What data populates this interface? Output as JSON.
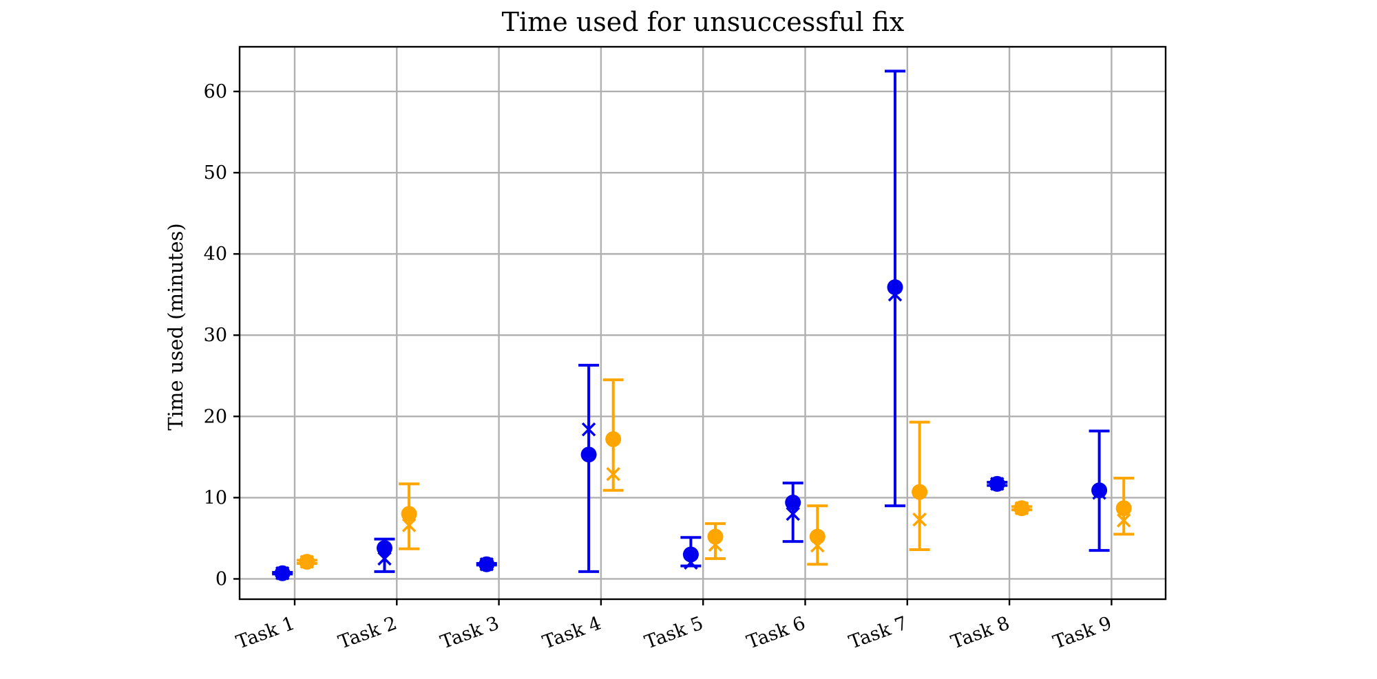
{
  "chart_data": {
    "type": "errorbar",
    "title": "Time used for unsuccessful fix",
    "xlabel": "",
    "ylabel": "Time used (minutes)",
    "ylim": [
      -2.5,
      65.5
    ],
    "yticks": [
      0,
      10,
      20,
      30,
      40,
      50,
      60
    ],
    "categories": [
      "Task 1",
      "Task 2",
      "Task 3",
      "Task 4",
      "Task 5",
      "Task 6",
      "Task 7",
      "Task 8",
      "Task 9"
    ],
    "grid": true,
    "series": [
      {
        "color": "#0000ee",
        "offset": -0.12,
        "mean": [
          0.7,
          3.8,
          1.8,
          15.3,
          3.0,
          9.4,
          35.9,
          11.7,
          10.9
        ],
        "median": [
          0.7,
          2.5,
          1.8,
          18.4,
          2.0,
          8.0,
          35.0,
          11.7,
          10.6
        ],
        "lower": [
          0.6,
          0.9,
          1.7,
          0.9,
          1.6,
          4.6,
          9.0,
          11.5,
          3.5
        ],
        "upper": [
          0.8,
          4.9,
          1.9,
          26.3,
          5.1,
          11.8,
          62.5,
          11.9,
          18.2
        ]
      },
      {
        "color": "#ffa500",
        "offset": 0.12,
        "mean": [
          2.1,
          8.0,
          null,
          17.2,
          5.2,
          5.2,
          10.7,
          8.7,
          8.7
        ],
        "median": [
          2.1,
          6.6,
          null,
          12.9,
          4.2,
          4.1,
          7.3,
          8.7,
          7.2
        ],
        "lower": [
          1.9,
          3.7,
          null,
          10.9,
          2.5,
          1.8,
          3.6,
          8.5,
          5.5
        ],
        "upper": [
          2.3,
          11.7,
          null,
          24.5,
          6.8,
          9.0,
          19.3,
          8.9,
          12.4
        ]
      }
    ]
  }
}
